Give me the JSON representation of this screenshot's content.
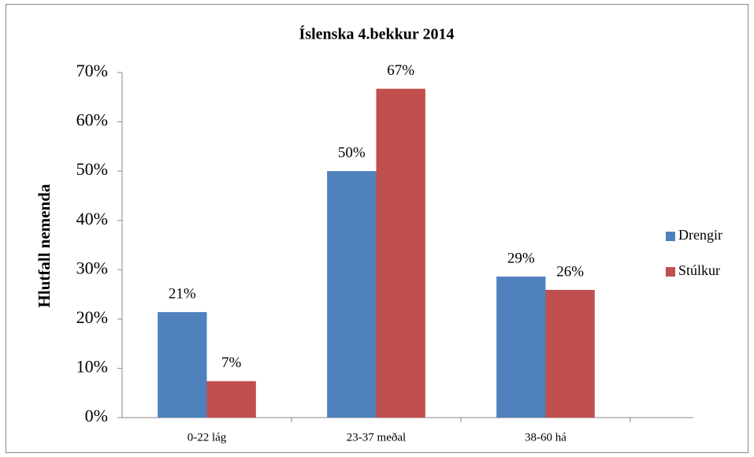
{
  "chart_data": {
    "type": "bar",
    "title": "Íslenska 4.bekkur 2014",
    "y_label": "Hlutfall nemenda",
    "categories": [
      "0-22 lág",
      "23-37 meðal",
      "38-60 há"
    ],
    "series": [
      {
        "name": "Drengir",
        "color": "#4f81bd",
        "values": [
          21.4,
          50,
          28.6
        ],
        "value_labels": [
          "21%",
          "50%",
          "29%"
        ]
      },
      {
        "name": "Stúlkur",
        "color": "#c0504d",
        "values": [
          7.4,
          66.7,
          25.9
        ],
        "value_labels": [
          "7%",
          "67%",
          "26%"
        ]
      }
    ],
    "ylim": [
      0,
      70
    ],
    "yticks": [
      {
        "value": 0,
        "label": "0%"
      },
      {
        "value": 10,
        "label": "10%"
      },
      {
        "value": 20,
        "label": "20%"
      },
      {
        "value": 30,
        "label": "30%"
      },
      {
        "value": 40,
        "label": "40%"
      },
      {
        "value": 50,
        "label": "50%"
      },
      {
        "value": 60,
        "label": "60%"
      },
      {
        "value": 70,
        "label": "70%"
      }
    ],
    "legend": "right",
    "grid": false
  }
}
